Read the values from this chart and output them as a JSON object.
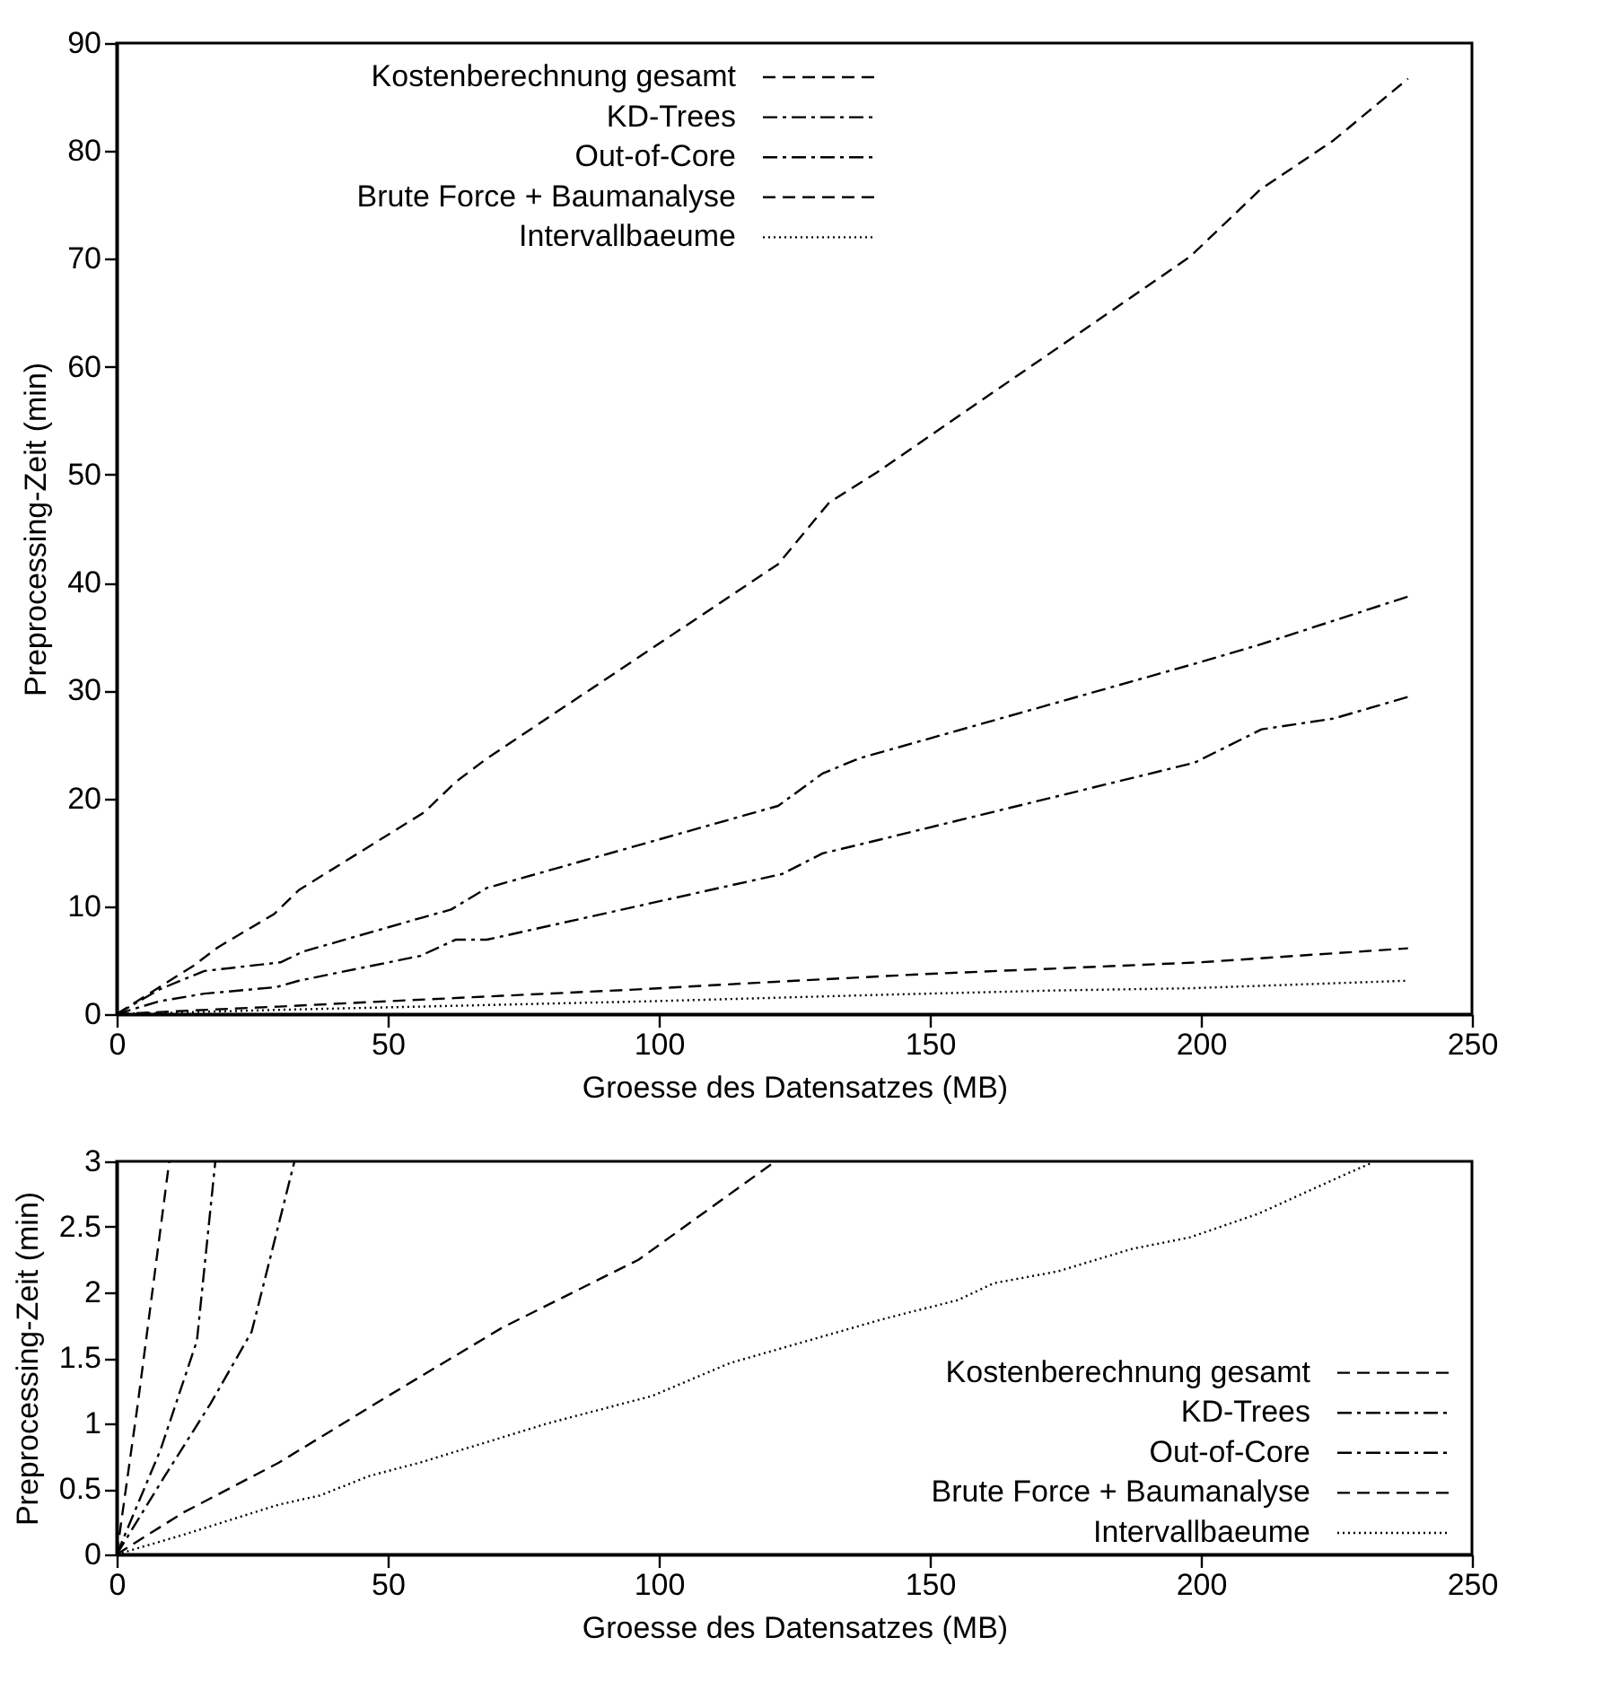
{
  "chart_data": [
    {
      "type": "line",
      "xlabel": "Groesse des Datensatzes (MB)",
      "ylabel": "Preprocessing-Zeit (min)",
      "xlim": [
        0,
        250
      ],
      "xticks": [
        0,
        50,
        100,
        150,
        200,
        250
      ],
      "ylim": [
        0,
        90
      ],
      "yticks": [
        0,
        10,
        20,
        30,
        40,
        50,
        60,
        70,
        80,
        90
      ],
      "grid": false,
      "legend": "top left",
      "marker": "none",
      "series": [
        {
          "name": "Kostenberechnung gesamt",
          "color": "#000000",
          "line_style": "dashed",
          "x": [
            0,
            14.2,
            18.7,
            29.1,
            33.6,
            56.7,
            62.5,
            68.3,
            122,
            131.4,
            140.2,
            198,
            210.9,
            224.5,
            238.2
          ],
          "values": [
            0,
            4.5,
            6.2,
            9.3,
            11.5,
            18.7,
            21.5,
            23.7,
            41.7,
            47.4,
            50.2,
            70.2,
            76.4,
            81,
            86.7
          ]
        },
        {
          "name": "KD-Trees",
          "color": "#000000",
          "line_style": "dashdot",
          "x": [
            0,
            7.9,
            16.2,
            30.2,
            34.4,
            56.7,
            61.7,
            68.3,
            122,
            130.2,
            136.9,
            199.7,
            211.2,
            238.2
          ],
          "values": [
            0,
            2.3,
            4,
            4.8,
            5.8,
            9,
            9.7,
            11.7,
            19.3,
            22.3,
            23.7,
            32.6,
            34.3,
            38.7
          ]
        },
        {
          "name": "Out-of-Core",
          "color": "#000000",
          "line_style": "dashdot",
          "x": [
            0,
            7.9,
            16.2,
            29.4,
            33.6,
            56,
            62.5,
            68.3,
            122.8,
            130.2,
            136.9,
            198.8,
            211.2,
            224.5,
            238.2
          ],
          "values": [
            0,
            1.2,
            1.9,
            2.5,
            3.1,
            5.4,
            6.9,
            6.9,
            13,
            14.9,
            15.7,
            23.3,
            26.4,
            27.4,
            29.4
          ]
        },
        {
          "name": "Brute Force + Baumanalyse",
          "color": "#000000",
          "line_style": "dashed",
          "x": [
            0,
            12.3,
            29.9,
            50.1,
            71.1,
            96.3,
            121.5,
            148.4,
            199.7,
            238.2
          ],
          "values": [
            0,
            0.3,
            0.7,
            1.2,
            1.7,
            2.3,
            3,
            3.7,
            4.8,
            6.1
          ]
        },
        {
          "name": "Intervallbaeume",
          "color": "#000000",
          "line_style": "dotted",
          "x": [
            0,
            29.9,
            55.9,
            98.8,
            141.7,
            173.6,
            198,
            226.6,
            238.2
          ],
          "values": [
            0,
            0.4,
            0.7,
            1.2,
            1.8,
            2.2,
            2.4,
            2.9,
            3.1
          ]
        }
      ]
    },
    {
      "type": "line",
      "xlabel": "Groesse des Datensatzes (MB)",
      "ylabel": "Preprocessing-Zeit (min)",
      "xlim": [
        0,
        250
      ],
      "xticks": [
        0,
        50,
        100,
        150,
        200,
        250
      ],
      "ylim": [
        0,
        3
      ],
      "yticks": [
        0,
        0.5,
        1,
        1.5,
        2,
        2.5,
        3
      ],
      "grid": false,
      "legend": "bottom right",
      "marker": "none",
      "series": [
        {
          "name": "Kostenberechnung gesamt",
          "color": "#000000",
          "line_style": "dashed",
          "x": [
            0,
            3.9,
            9.7
          ],
          "values": [
            0,
            1.15,
            3
          ]
        },
        {
          "name": "KD-Trees",
          "color": "#000000",
          "line_style": "dashdot",
          "x": [
            0,
            8.1,
            14.8,
            18.2
          ],
          "values": [
            0,
            0.8,
            1.63,
            3
          ]
        },
        {
          "name": "Out-of-Core",
          "color": "#000000",
          "line_style": "dashdot",
          "x": [
            0,
            8.9,
            17.3,
            24.9,
            32.8
          ],
          "values": [
            0,
            0.6,
            1.15,
            1.7,
            3
          ]
        },
        {
          "name": "Brute Force + Baumanalyse",
          "color": "#000000",
          "line_style": "dashed",
          "x": [
            0,
            12.3,
            29.9,
            50.1,
            71.1,
            96.3,
            121.5
          ],
          "values": [
            0,
            0.32,
            0.7,
            1.21,
            1.73,
            2.25,
            3
          ]
        },
        {
          "name": "Intervallbaeume",
          "color": "#000000",
          "line_style": "dotted",
          "x": [
            0,
            12.3,
            29.9,
            37.5,
            46.7,
            55.9,
            79.5,
            98.8,
            113.1,
            141.7,
            155.1,
            161.8,
            173.6,
            187.1,
            198,
            210.6,
            226.6,
            231.6
          ],
          "values": [
            0,
            0.15,
            0.38,
            0.45,
            0.6,
            0.7,
            1,
            1.21,
            1.46,
            1.8,
            1.94,
            2.07,
            2.16,
            2.33,
            2.42,
            2.6,
            2.9,
            2.99
          ]
        }
      ]
    }
  ]
}
